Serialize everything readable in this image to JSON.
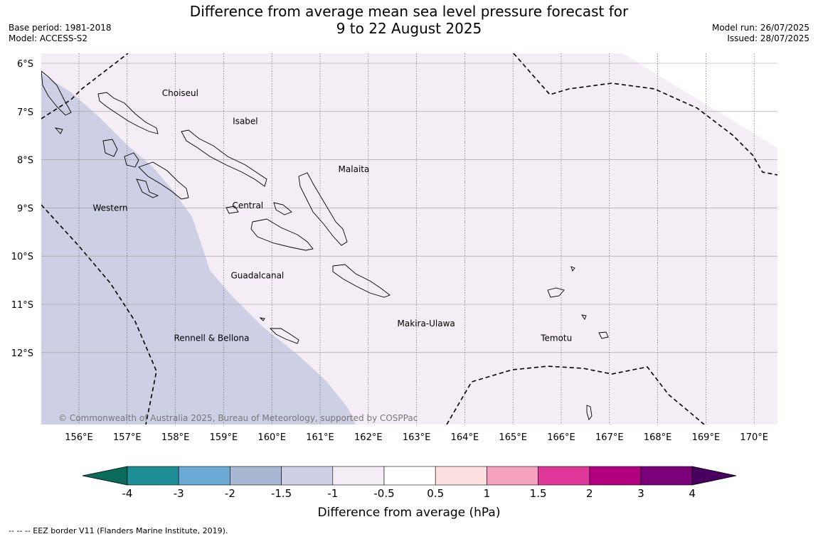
{
  "title_line1": "Difference from average mean sea level pressure forecast for",
  "title_line2": "9 to 22 August 2025",
  "base_period": "Base period: 1981-2018",
  "model": "Model: ACCESS-S2",
  "model_run": "Model run: 26/07/2025",
  "issued": "Issued: 28/07/2025",
  "copyright": "© Commonwealth of Australia 2025, Bureau of Meteorology, supported by COSPPac",
  "footnote": "-- -- -- EEZ border V11 (Flanders Marine Institute, 2019).",
  "lat_labels": [
    "6°S",
    "7°S",
    "8°S",
    "9°S",
    "10°S",
    "11°S",
    "12°S"
  ],
  "lon_labels": [
    "156°E",
    "157°E",
    "158°E",
    "159°E",
    "160°E",
    "161°E",
    "162°E",
    "163°E",
    "164°E",
    "165°E",
    "166°E",
    "167°E",
    "168°E",
    "169°E",
    "170°E"
  ],
  "places": [
    {
      "name": "Choiseul",
      "lon": 158.1,
      "lat": -6.62
    },
    {
      "name": "Isabel",
      "lon": 159.45,
      "lat": -7.2
    },
    {
      "name": "Malaita",
      "lon": 161.7,
      "lat": -8.2
    },
    {
      "name": "Central",
      "lon": 159.5,
      "lat": -8.95
    },
    {
      "name": "Western",
      "lon": 156.65,
      "lat": -9.0
    },
    {
      "name": "Guadalcanal",
      "lon": 159.7,
      "lat": -10.4
    },
    {
      "name": "Makira-Ulawa",
      "lon": 163.2,
      "lat": -11.4
    },
    {
      "name": "Temotu",
      "lon": 165.9,
      "lat": -11.7
    },
    {
      "name": "Rennell & Bellona",
      "lon": 158.75,
      "lat": -11.7
    }
  ],
  "colorbar": {
    "title": "Difference from average (hPa)",
    "ticks": [
      "-4",
      "-3",
      "-2",
      "-1.5",
      "-1",
      "-0.5",
      "0.5",
      "1",
      "1.5",
      "2",
      "3",
      "4"
    ],
    "colors": [
      "#1d8e96",
      "#6aaad4",
      "#a8b8d4",
      "#cdd0e4",
      "#f4edf5",
      "#ffffff",
      "#fde0e0",
      "#f7a1c0",
      "#de389a",
      "#b1007f",
      "#7a0177"
    ],
    "under_color": "#0b6b5a",
    "over_color": "#4a0060"
  },
  "map_colors": {
    "band_minus_1_5_to_minus_1": "#cdd0e4",
    "band_minus_1_to_minus_0_5": "#f4edf5",
    "band_minus_0_5_to_0_5": "#ffffff"
  }
}
